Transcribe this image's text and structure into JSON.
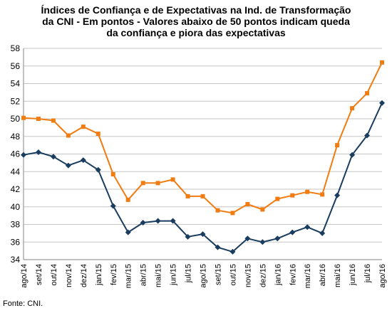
{
  "chart_data": {
    "type": "line",
    "title_lines": [
      "Índices de Confiança e de Expectativas na Ind. de Transformação",
      "da CNI - Em pontos - Valores abaixo de 50 pontos indicam queda",
      "da confiança e piora das expectativas"
    ],
    "xlabel": "",
    "ylabel": "",
    "ylim": [
      34,
      58
    ],
    "yticks": [
      34,
      36,
      38,
      40,
      42,
      44,
      46,
      48,
      50,
      52,
      54,
      56,
      58
    ],
    "grid": true,
    "legend": "none",
    "categories": [
      "ago/14",
      "set/14",
      "out/14",
      "nov/14",
      "dez/14",
      "jan/15",
      "fev/15",
      "mar/15",
      "abr/15",
      "mai/15",
      "jun/15",
      "jul/15",
      "ago/15",
      "set/15",
      "out/15",
      "nov/15",
      "dez/15",
      "jan/16",
      "fev/16",
      "mar/16",
      "abr/16",
      "mai/16",
      "jun/16",
      "jul/16",
      "ago/16"
    ],
    "x_tick_labels": [
      "ago/14",
      "set/14",
      "out/14",
      "nov/14",
      "dez/14",
      "jan/15",
      "fev/15",
      "mar/15",
      "abr/15",
      "mai/15",
      "jun/15",
      "jul/15",
      "ago/15",
      "set/15",
      "out/15",
      "nov/15",
      "dez/15",
      "jan/16",
      "fev/16",
      "mar/16",
      "abr/16",
      "mai/16",
      "jun/16",
      "jul/16",
      "ago/16"
    ],
    "series": [
      {
        "color": "#f07c12",
        "marker": "square",
        "values": [
          50.1,
          50.0,
          49.8,
          48.1,
          49.1,
          48.3,
          43.7,
          40.8,
          42.7,
          42.7,
          43.1,
          41.2,
          41.2,
          39.6,
          39.3,
          40.3,
          39.7,
          40.9,
          41.3,
          41.7,
          41.4,
          47.0,
          51.2,
          52.9,
          56.4
        ]
      },
      {
        "color": "#1a3d5f",
        "marker": "diamond",
        "values": [
          45.9,
          46.2,
          45.7,
          44.7,
          45.3,
          44.2,
          40.1,
          37.1,
          38.2,
          38.4,
          38.4,
          36.6,
          36.9,
          35.4,
          34.9,
          36.4,
          36.0,
          36.4,
          37.1,
          37.7,
          37.0,
          41.3,
          45.9,
          48.1,
          51.8
        ]
      }
    ]
  },
  "source_note": "Fonte: CNI."
}
